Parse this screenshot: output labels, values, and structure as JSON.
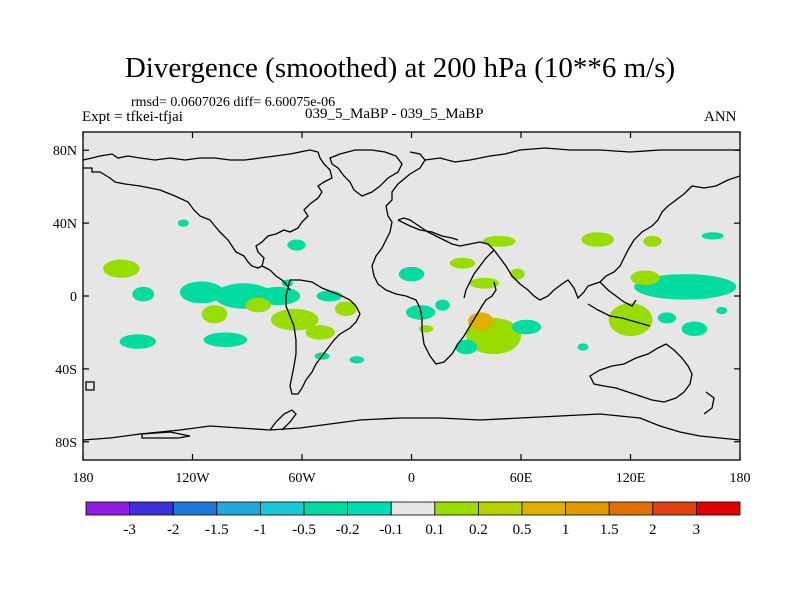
{
  "title": "Divergence (smoothed) at 200 hPa (10**6 m/s)",
  "stats_text": "rmsd= 0.0607026 diff= 6.60075e-06",
  "expt_text": "Expt = tfkei-tfjai",
  "case_text": "039_5_MaBP - 039_5_MaBP",
  "season": "ANN",
  "map": {
    "lon_range": [
      -180,
      180
    ],
    "lat_range": [
      -90,
      90
    ],
    "ocean_color": "#e6e6e6",
    "coast_color": "#000000",
    "lat_ticks": [
      {
        "value": 80,
        "label": "80N"
      },
      {
        "value": 40,
        "label": "40N"
      },
      {
        "value": 0,
        "label": "0"
      },
      {
        "value": -40,
        "label": "40S"
      },
      {
        "value": -80,
        "label": "80S"
      }
    ],
    "lon_ticks": [
      {
        "value": -180,
        "label": "180"
      },
      {
        "value": -120,
        "label": "120W"
      },
      {
        "value": -60,
        "label": "60W"
      },
      {
        "value": 0,
        "label": "0"
      },
      {
        "value": 60,
        "label": "60E"
      },
      {
        "value": 120,
        "label": "120E"
      },
      {
        "value": 180,
        "label": "180"
      }
    ],
    "blobs": [
      {
        "lon": 165,
        "lat": 33,
        "rlon": 6,
        "rlat": 2,
        "color": "#00dca0"
      },
      {
        "lon": -159,
        "lat": 15,
        "rlon": 10,
        "rlat": 5,
        "color": "#99dd00"
      },
      {
        "lon": -147,
        "lat": 1,
        "rlon": 6,
        "rlat": 4,
        "color": "#00dca0"
      },
      {
        "lon": -150,
        "lat": -25,
        "rlon": 10,
        "rlat": 4,
        "color": "#00dca0"
      },
      {
        "lon": -115,
        "lat": 2,
        "rlon": 12,
        "rlat": 6,
        "color": "#00dca0"
      },
      {
        "lon": -92,
        "lat": 0,
        "rlon": 16,
        "rlat": 7,
        "color": "#00dca0"
      },
      {
        "lon": -73,
        "lat": 0,
        "rlon": 12,
        "rlat": 5,
        "color": "#00dca0"
      },
      {
        "lon": -108,
        "lat": -10,
        "rlon": 7,
        "rlat": 5,
        "color": "#99dd00"
      },
      {
        "lon": -102,
        "lat": -24,
        "rlon": 12,
        "rlat": 4,
        "color": "#00dca0"
      },
      {
        "lon": -84,
        "lat": -5,
        "rlon": 7,
        "rlat": 4,
        "color": "#99dd00"
      },
      {
        "lon": -64,
        "lat": -13,
        "rlon": 13,
        "rlat": 6,
        "color": "#99dd00"
      },
      {
        "lon": -50,
        "lat": -20,
        "rlon": 8,
        "rlat": 4,
        "color": "#99dd00"
      },
      {
        "lon": -36,
        "lat": -7,
        "rlon": 6,
        "rlat": 4,
        "color": "#99dd00"
      },
      {
        "lon": -45,
        "lat": 0,
        "rlon": 7,
        "rlat": 3,
        "color": "#00dca0"
      },
      {
        "lon": -49,
        "lat": -33,
        "rlon": 4,
        "rlat": 2,
        "color": "#00dca0"
      },
      {
        "lon": -30,
        "lat": -35,
        "rlon": 4,
        "rlat": 2,
        "color": "#00dca0"
      },
      {
        "lon": -125,
        "lat": 40,
        "rlon": 3,
        "rlat": 2,
        "color": "#00dca0"
      },
      {
        "lon": -63,
        "lat": 28,
        "rlon": 5,
        "rlat": 3,
        "color": "#00dca0"
      },
      {
        "lon": -68,
        "lat": 7,
        "rlon": 3,
        "rlat": 2,
        "color": "#00dca0"
      },
      {
        "lon": 0,
        "lat": 12,
        "rlon": 7,
        "rlat": 4,
        "color": "#00dca0"
      },
      {
        "lon": 28,
        "lat": 18,
        "rlon": 7,
        "rlat": 3,
        "color": "#99dd00"
      },
      {
        "lon": 48,
        "lat": 30,
        "rlon": 9,
        "rlat": 3,
        "color": "#99dd00"
      },
      {
        "lon": 40,
        "lat": 7,
        "rlon": 8,
        "rlat": 3,
        "color": "#99dd00"
      },
      {
        "lon": 58,
        "lat": 12,
        "rlon": 4,
        "rlat": 3,
        "color": "#99dd00"
      },
      {
        "lon": 45,
        "lat": -22,
        "rlon": 15,
        "rlat": 10,
        "color": "#99dd00"
      },
      {
        "lon": 38,
        "lat": -14,
        "rlon": 7,
        "rlat": 5,
        "color": "#e0b000"
      },
      {
        "lon": 5,
        "lat": -9,
        "rlon": 8,
        "rlat": 4,
        "color": "#00dca0"
      },
      {
        "lon": 17,
        "lat": -5,
        "rlon": 4,
        "rlat": 3,
        "color": "#00dca0"
      },
      {
        "lon": 8,
        "lat": -18,
        "rlon": 4,
        "rlat": 2,
        "color": "#99dd00"
      },
      {
        "lon": 30,
        "lat": -28,
        "rlon": 6,
        "rlat": 4,
        "color": "#00dca0"
      },
      {
        "lon": 63,
        "lat": -17,
        "rlon": 8,
        "rlat": 4,
        "color": "#00dca0"
      },
      {
        "lon": 102,
        "lat": 31,
        "rlon": 9,
        "rlat": 4,
        "color": "#99dd00"
      },
      {
        "lon": 132,
        "lat": 30,
        "rlon": 5,
        "rlat": 3,
        "color": "#99dd00"
      },
      {
        "lon": 150,
        "lat": 5,
        "rlon": 28,
        "rlat": 7,
        "color": "#00dca0"
      },
      {
        "lon": 128,
        "lat": 10,
        "rlon": 8,
        "rlat": 4,
        "color": "#99dd00"
      },
      {
        "lon": 120,
        "lat": -13,
        "rlon": 12,
        "rlat": 9,
        "color": "#99dd00"
      },
      {
        "lon": 155,
        "lat": -18,
        "rlon": 7,
        "rlat": 4,
        "color": "#00dca0"
      },
      {
        "lon": 140,
        "lat": -12,
        "rlon": 5,
        "rlat": 3,
        "color": "#00dca0"
      },
      {
        "lon": 94,
        "lat": -28,
        "rlon": 3,
        "rlat": 2,
        "color": "#00dca0"
      },
      {
        "lon": 170,
        "lat": -8,
        "rlon": 3,
        "rlat": 2,
        "color": "#00dca0"
      }
    ]
  },
  "colorbar": {
    "colors": [
      "#8c1fe0",
      "#3c32dc",
      "#1d7ad8",
      "#1ea8dc",
      "#1cc8d8",
      "#00dca0",
      "#00dcb4",
      "#e6e6e6",
      "#99dd00",
      "#b8d200",
      "#e0b000",
      "#e09a00",
      "#e07000",
      "#e04010",
      "#e00000"
    ],
    "labels": [
      "-3",
      "-2",
      "-1.5",
      "-1",
      "-0.5",
      "-0.2",
      "-0.1",
      "0.1",
      "0.2",
      "0.5",
      "1",
      "1.5",
      "2",
      "3"
    ]
  }
}
